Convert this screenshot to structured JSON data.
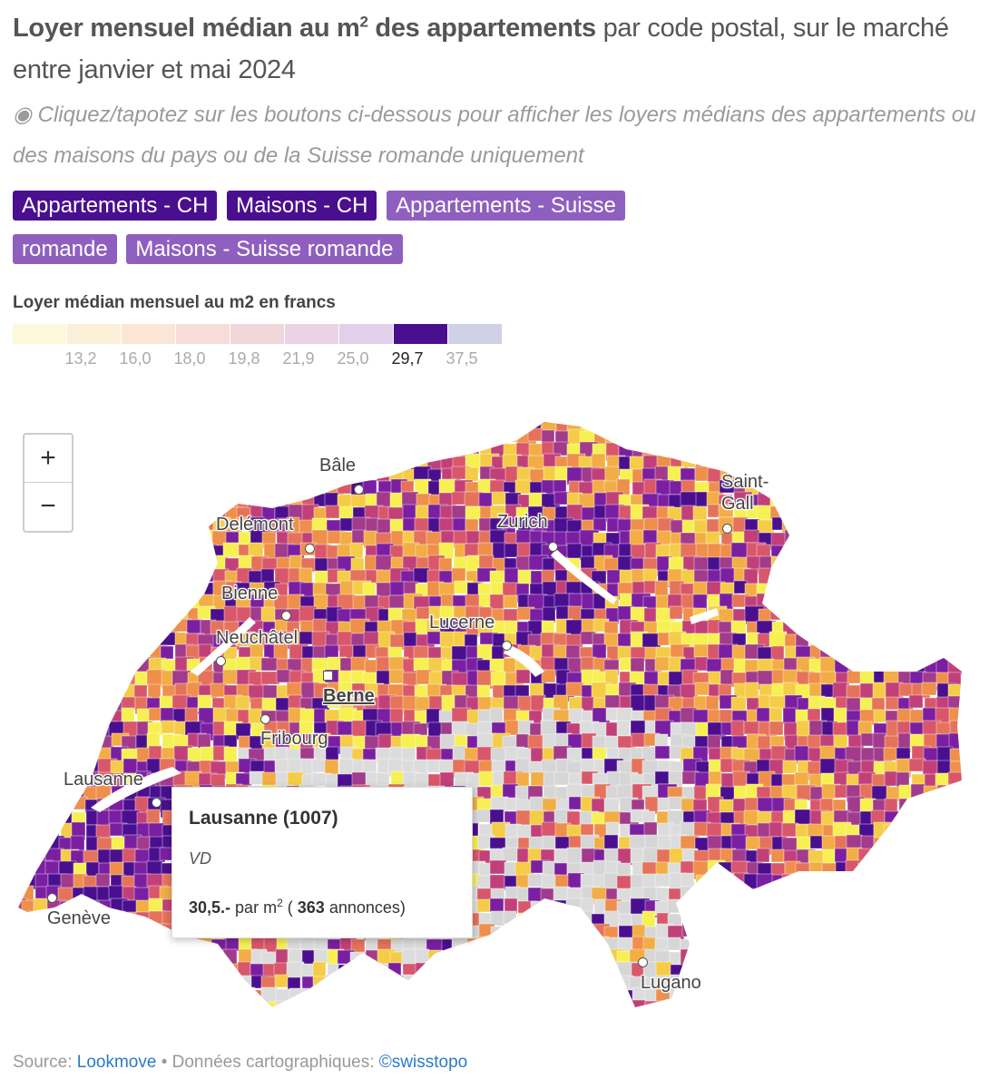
{
  "title": {
    "bold_part": "Loyer mensuel médian au m",
    "bold_sup": "2",
    "bold_tail": " des appartements",
    "regular_part": " par code postal, sur le marché entre janvier et mai 2024"
  },
  "subtitle": "◉ Cliquez/tapotez sur les boutons ci-dessous pour afficher les loyers médians des appartements ou des maisons du pays ou de la Suisse romande uniquement",
  "buttons": [
    {
      "label": "Appartements - CH",
      "style": "dark"
    },
    {
      "label": "Maisons - CH",
      "style": "dark"
    },
    {
      "label": "Appartements - Suisse romande",
      "style": "light"
    },
    {
      "label": "Maisons - Suisse romande",
      "style": "light"
    }
  ],
  "legend": {
    "title": "Loyer médian mensuel au m2 en francs",
    "colors": [
      "#fdf8dc",
      "#fcefd8",
      "#fbe6d6",
      "#f7dcd8",
      "#f1d6da",
      "#e9d3e4",
      "#e2cfeb",
      "#4a0f8f",
      "#d0d0e6"
    ],
    "thresholds": [
      "13,2",
      "16,0",
      "18,0",
      "19,8",
      "21,9",
      "25,0",
      "29,7",
      "37,5"
    ],
    "active_threshold": "29,7"
  },
  "map": {
    "zoom_in": "+",
    "zoom_out": "−",
    "cities": [
      {
        "name": "Bâle"
      },
      {
        "name": "Delémont"
      },
      {
        "name": "Zurich"
      },
      {
        "name": "Saint-Gall"
      },
      {
        "name": "Bienne"
      },
      {
        "name": "Neuchâtel"
      },
      {
        "name": "Lucerne"
      },
      {
        "name": "Berne"
      },
      {
        "name": "Fribourg"
      },
      {
        "name": "Lausanne"
      },
      {
        "name": "Genève"
      },
      {
        "name": "Lugano"
      }
    ]
  },
  "tooltip": {
    "title": "Lausanne (1007)",
    "canton": "VD",
    "value": "30,5.-",
    "unit": "par m",
    "unit_sup": "2",
    "count": "363",
    "count_label": "annonces"
  },
  "source": {
    "prefix": "Source: ",
    "source_link": "Lookmove",
    "middle": " • Données cartographiques: ",
    "map_link": "©swisstopo"
  }
}
